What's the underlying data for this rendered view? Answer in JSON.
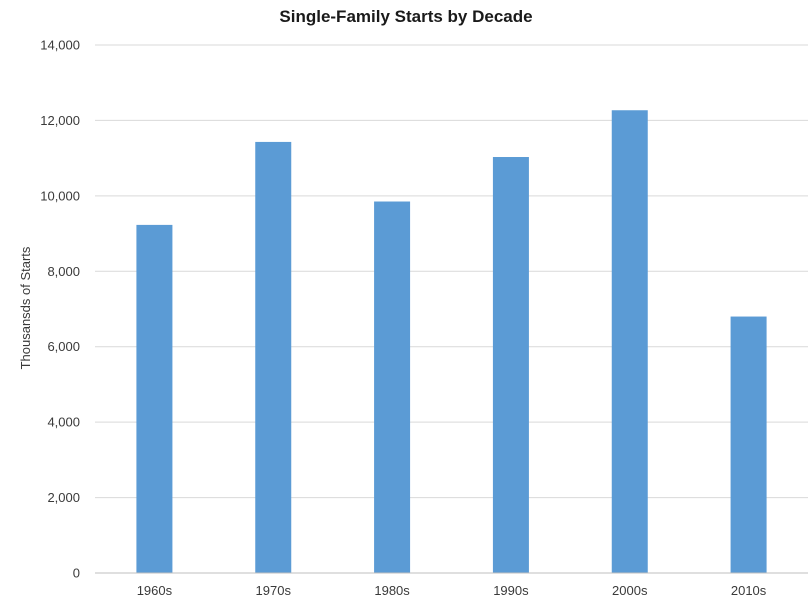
{
  "chart_data": {
    "type": "bar",
    "title": "Single-Family Starts by Decade",
    "xlabel": "",
    "ylabel": "Thousansds of Starts",
    "categories": [
      "1960s",
      "1970s",
      "1980s",
      "1990s",
      "2000s",
      "2010s"
    ],
    "values": [
      9230,
      11430,
      9850,
      11030,
      12270,
      6800
    ],
    "ylim": [
      0,
      14000
    ],
    "yticks": [
      0,
      2000,
      4000,
      6000,
      8000,
      10000,
      12000,
      14000
    ],
    "ytick_labels": [
      "0",
      "2,000",
      "4,000",
      "6,000",
      "8,000",
      "10,000",
      "12,000",
      "14,000"
    ],
    "grid": true,
    "legend": "none",
    "bar_color": "#5b9bd5"
  }
}
